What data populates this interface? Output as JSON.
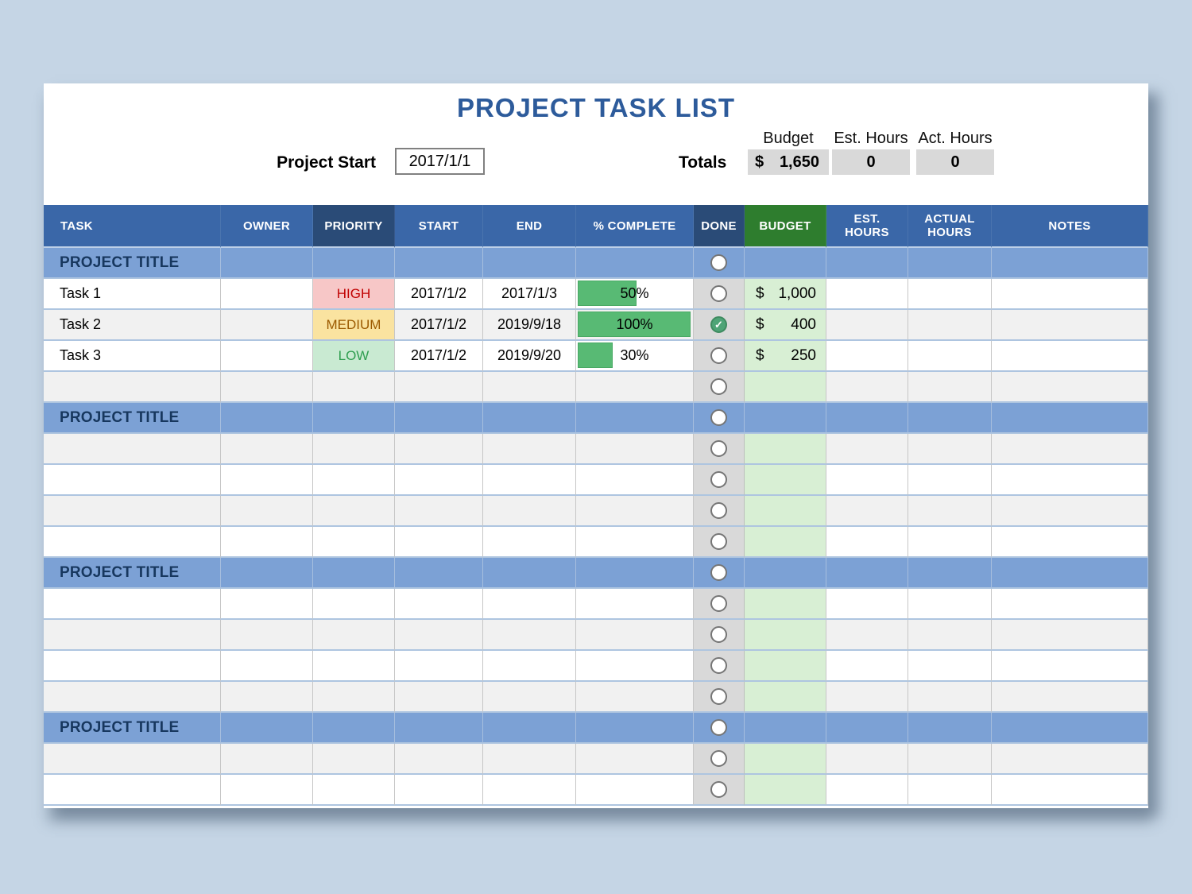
{
  "page": {
    "title": "PROJECT TASK LIST"
  },
  "controls": {
    "project_start_label": "Project Start",
    "project_start_value": "2017/1/1",
    "totals_label": "Totals",
    "budget_label": "Budget",
    "budget_currency": "$",
    "budget_total": "1,650",
    "est_hours_label": "Est. Hours",
    "est_hours_total": "0",
    "act_hours_label": "Act. Hours",
    "act_hours_total": "0"
  },
  "table": {
    "columns": [
      {
        "key": "task",
        "label": "TASK"
      },
      {
        "key": "owner",
        "label": "OWNER"
      },
      {
        "key": "priority",
        "label": "PRIORITY"
      },
      {
        "key": "start",
        "label": "START"
      },
      {
        "key": "end",
        "label": "END"
      },
      {
        "key": "complete",
        "label": "% COMPLETE"
      },
      {
        "key": "done",
        "label": "DONE"
      },
      {
        "key": "budget",
        "label": "BUDGET"
      },
      {
        "key": "est_hours",
        "label": "EST.\nHOURS"
      },
      {
        "key": "actual_hours",
        "label": "ACTUAL\nHOURS"
      },
      {
        "key": "notes",
        "label": "NOTES"
      }
    ],
    "rows": [
      {
        "type": "section",
        "title": "PROJECT TITLE",
        "done": false
      },
      {
        "type": "task",
        "shade": "white",
        "task": "Task 1",
        "owner": "",
        "priority": "HIGH",
        "start": "2017/1/2",
        "end": "2017/1/3",
        "complete_label": "50%",
        "complete_pct": 50,
        "done": false,
        "currency": "$",
        "budget": "1,000",
        "est_hours": "",
        "actual_hours": "",
        "notes": ""
      },
      {
        "type": "task",
        "shade": "gray",
        "task": "Task 2",
        "owner": "",
        "priority": "MEDIUM",
        "start": "2017/1/2",
        "end": "2019/9/18",
        "complete_label": "100%",
        "complete_pct": 100,
        "done": true,
        "currency": "$",
        "budget": "400",
        "est_hours": "",
        "actual_hours": "",
        "notes": ""
      },
      {
        "type": "task",
        "shade": "white",
        "task": "Task 3",
        "owner": "",
        "priority": "LOW",
        "start": "2017/1/2",
        "end": "2019/9/20",
        "complete_label": "30%",
        "complete_pct": 30,
        "done": false,
        "currency": "$",
        "budget": "250",
        "est_hours": "",
        "actual_hours": "",
        "notes": ""
      },
      {
        "type": "empty",
        "shade": "gray",
        "done": false
      },
      {
        "type": "section",
        "title": "PROJECT TITLE",
        "done": false
      },
      {
        "type": "empty",
        "shade": "gray",
        "done": false
      },
      {
        "type": "empty",
        "shade": "white",
        "done": false
      },
      {
        "type": "empty",
        "shade": "gray",
        "done": false
      },
      {
        "type": "empty",
        "shade": "white",
        "done": false
      },
      {
        "type": "section",
        "title": "PROJECT TITLE",
        "done": false
      },
      {
        "type": "empty",
        "shade": "white",
        "done": false
      },
      {
        "type": "empty",
        "shade": "gray",
        "done": false
      },
      {
        "type": "empty",
        "shade": "white",
        "done": false
      },
      {
        "type": "empty",
        "shade": "gray",
        "done": false
      },
      {
        "type": "section",
        "title": "PROJECT TITLE",
        "done": false
      },
      {
        "type": "empty",
        "shade": "gray",
        "done": false
      },
      {
        "type": "empty",
        "shade": "white",
        "done": false
      }
    ]
  },
  "colors": {
    "background": "#c5d5e5",
    "title_text": "#2d5b9b",
    "header_blue": "#3a67a8",
    "header_dark_blue": "#2a4b77",
    "header_green": "#2e7d2e",
    "section_row_blue": "#7ca1d5",
    "row_gray": "#f1f1f1",
    "done_column_gray": "#d9d9d9",
    "budget_column_green": "#d8efd4",
    "progress_bar_green": "#58ba74",
    "checked_radio_green": "#4fa477",
    "totals_box_gray": "#d9d9d9",
    "priority": {
      "HIGH": {
        "bg": "#f7c7c7",
        "fg": "#c00000"
      },
      "MEDIUM": {
        "bg": "#fae3a0",
        "fg": "#9c5a00"
      },
      "LOW": {
        "bg": "#c9ead2",
        "fg": "#2f9e50"
      }
    },
    "check_glyph": "✓"
  }
}
